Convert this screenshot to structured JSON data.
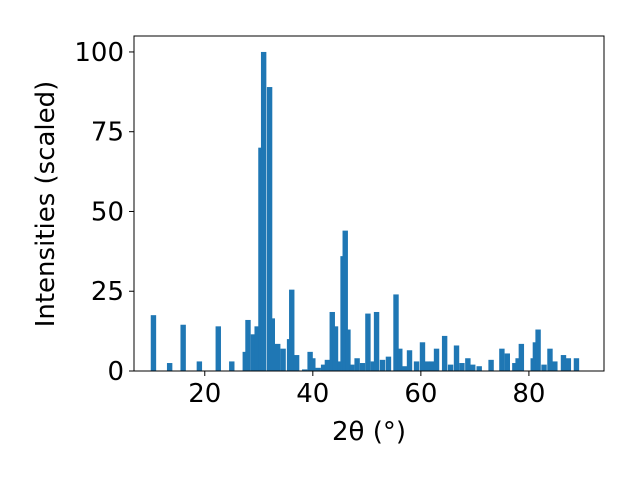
{
  "chart_data": {
    "type": "bar",
    "xlabel": "2θ (°)",
    "ylabel": "Intensities (scaled)",
    "color": "#1f77b4",
    "x": [
      10.5,
      13.5,
      16,
      19,
      22.5,
      25,
      27.5,
      28,
      29,
      29.7,
      30.4,
      30.9,
      32,
      32.5,
      33.5,
      34.5,
      35.7,
      36.1,
      37,
      38.5,
      39.5,
      40,
      41,
      42,
      42.7,
      43.6,
      44.2,
      45.1,
      45.6,
      46,
      46.5,
      47.2,
      48.2,
      49.2,
      50.2,
      51.2,
      51.8,
      52.9,
      54,
      55.4,
      56.1,
      57,
      57.9,
      59.2,
      60.3,
      61.2,
      62.1,
      62.9,
      64.4,
      65.5,
      66.6,
      67.6,
      68.7,
      69.6,
      70.8,
      73,
      75,
      76,
      77.4,
      78,
      78.6,
      80.8,
      81.2,
      81.7,
      82.8,
      83.9,
      84.8,
      86.4,
      87.3,
      88.8
    ],
    "values": [
      17.5,
      2.5,
      14.5,
      3,
      14,
      3,
      6,
      16,
      11.5,
      14,
      70,
      100,
      89,
      16.5,
      8.5,
      7,
      10,
      25.5,
      5,
      0.5,
      6,
      4,
      1,
      2,
      3.5,
      18.5,
      14,
      3,
      36,
      44,
      13,
      2,
      4,
      2.5,
      18,
      3,
      18.5,
      3.5,
      4.5,
      24,
      7,
      1.5,
      6.5,
      3,
      9,
      3,
      3,
      7,
      11,
      2,
      8,
      2.5,
      4,
      2,
      1.5,
      3.5,
      7,
      5.5,
      2.5,
      4,
      8.5,
      4,
      9,
      13,
      2,
      7,
      3,
      5,
      4,
      4
    ],
    "bar_width": 1,
    "xlim": [
      6.9,
      93.9
    ],
    "ylim": [
      0,
      105
    ],
    "xticks": [
      20,
      40,
      60,
      80
    ],
    "yticks": [
      0,
      25,
      50,
      75,
      100
    ]
  }
}
